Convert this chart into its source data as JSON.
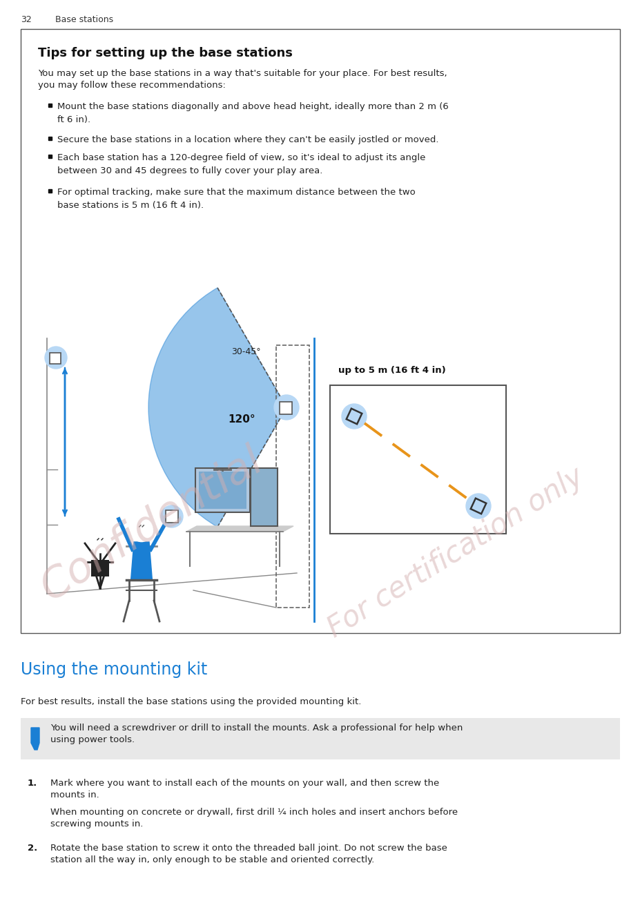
{
  "page_number": "32",
  "page_header_num": "32",
  "page_header_text": "Base stations",
  "box_title": "Tips for setting up the base stations",
  "box_intro_line1": "You may set up the base stations in a way that's suitable for your place. For best results,",
  "box_intro_line2": "you may follow these recommendations:",
  "bullets": [
    "Mount the base stations diagonally and above head height, ideally more than 2 m (6\nft 6 in).",
    "Secure the base stations in a location where they can't be easily jostled or moved.",
    "Each base station has a 120-degree field of view, so it's ideal to adjust its angle\nbetween 30 and 45 degrees to fully cover your play area.",
    "For optimal tracking, make sure that the maximum distance between the two\nbase stations is 5 m (16 ft 4 in)."
  ],
  "label_30_45": "30-45°",
  "label_120": "120°",
  "label_5m": "up to 5 m (16 ft 4 in)",
  "section2_title": "Using the mounting kit",
  "section2_intro": "For best results, install the base stations using the provided mounting kit.",
  "note_text_line1": "You will need a screwdriver or drill to install the mounts. Ask a professional for help when",
  "note_text_line2": "using power tools.",
  "step1_num": "1.",
  "step1_text_line1": "Mark where you want to install each of the mounts on your wall, and then screw the",
  "step1_text_line2": "mounts in.",
  "step1_sub_line1": "When mounting on concrete or drywall, first drill ¼ inch holes and insert anchors before",
  "step1_sub_line2": "screwing mounts in.",
  "step2_num": "2.",
  "step2_text_line1": "Rotate the base station to screw it onto the threaded ball joint. Do not screw the base",
  "step2_text_line2": "station all the way in, only enough to be stable and oriented correctly.",
  "bg_color": "#ffffff",
  "box_border_color": "#555555",
  "blue_color": "#1a7fd4",
  "orange_color": "#e8941a",
  "note_bg_color": "#e8e8e8",
  "wm_color": "#d4b0b0",
  "text_color": "#222222",
  "header_color": "#111111"
}
